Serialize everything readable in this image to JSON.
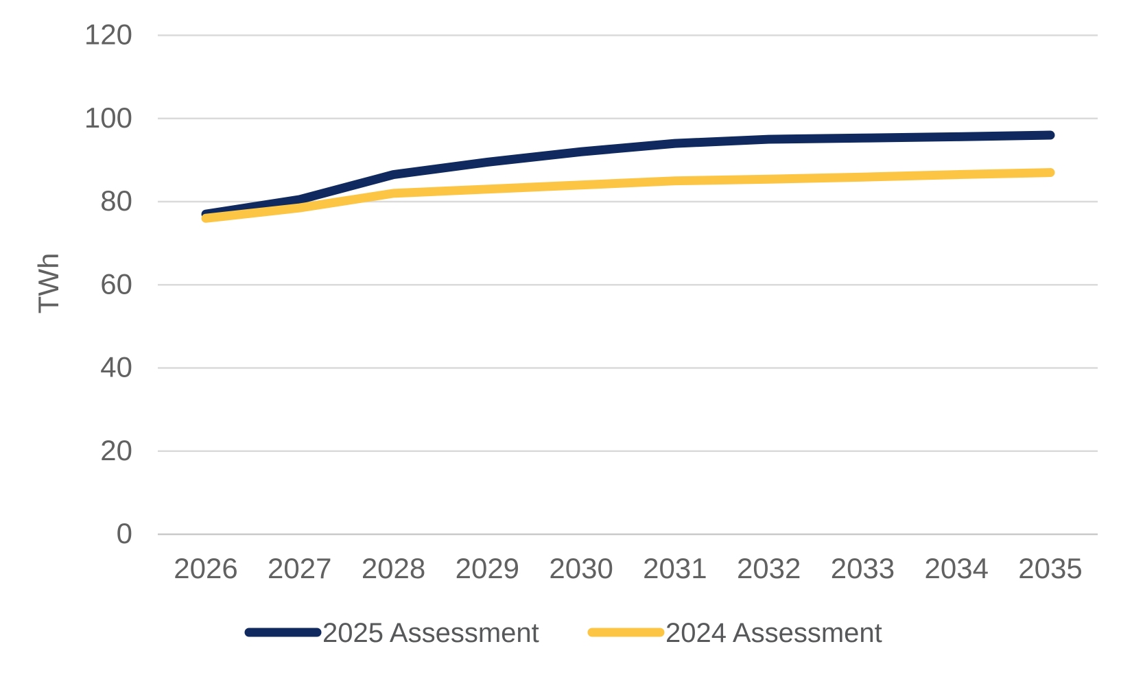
{
  "chart_data": {
    "type": "line",
    "x": [
      2026,
      2027,
      2028,
      2029,
      2030,
      2031,
      2032,
      2033,
      2034,
      2035
    ],
    "series": [
      {
        "name": "2025 Assessment",
        "color": "#102A60",
        "values": [
          77,
          80.5,
          86.5,
          89.5,
          92,
          94,
          95,
          95.3,
          95.6,
          96
        ]
      },
      {
        "name": "2024 Assessment",
        "color": "#FCC544",
        "values": [
          76,
          78.5,
          82,
          83,
          84,
          85,
          85.4,
          85.9,
          86.5,
          87
        ]
      }
    ],
    "title": "",
    "xlabel": "",
    "ylabel": "TWh",
    "ylim": [
      0,
      120
    ],
    "yticks": [
      0,
      20,
      40,
      60,
      80,
      100,
      120
    ],
    "grid": true,
    "legend_position": "bottom"
  },
  "style_colors": {
    "gridline": "#DADADA",
    "baseline": "#C9C9C9",
    "tick_text": "#616161",
    "legend_text": "#57585A"
  }
}
